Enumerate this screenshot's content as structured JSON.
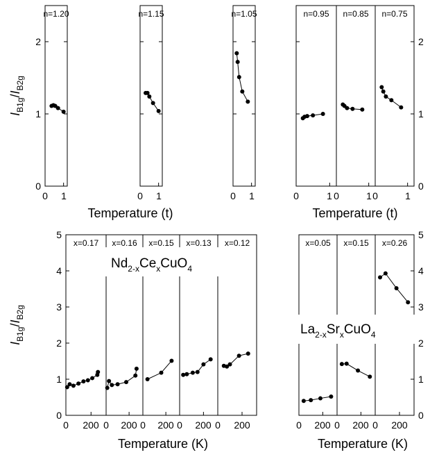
{
  "chart_data": [
    {
      "type": "scatter",
      "group": "theory",
      "xlabel": "Temperature (t)",
      "ylabel": "I_B1g/I_B2g",
      "ylim": [
        0,
        2.5
      ],
      "xlim": [
        0,
        1.2
      ],
      "yticks": [
        0,
        1,
        2
      ],
      "xticks": [
        0,
        1
      ],
      "grid": false,
      "panels": [
        {
          "label": "n=1.20",
          "x": [
            0.35,
            0.45,
            0.55,
            0.7,
            1.0
          ],
          "y": [
            1.11,
            1.12,
            1.11,
            1.08,
            1.03
          ]
        },
        {
          "label": "n=1.15",
          "x": [
            0.3,
            0.4,
            0.5,
            0.7,
            1.0
          ],
          "y": [
            1.29,
            1.29,
            1.24,
            1.15,
            1.04
          ]
        },
        {
          "label": "n=1.05",
          "x": [
            0.2,
            0.25,
            0.33,
            0.5,
            0.8
          ],
          "y": [
            1.84,
            1.72,
            1.51,
            1.31,
            1.17
          ]
        },
        {
          "label": "n=0.95",
          "x": [
            0.2,
            0.25,
            0.33,
            0.5,
            0.8
          ],
          "y": [
            0.94,
            0.96,
            0.97,
            0.98,
            1.0
          ]
        },
        {
          "label": "n=0.85",
          "x": [
            0.2,
            0.25,
            0.33,
            0.5,
            0.8
          ],
          "y": [
            1.13,
            1.11,
            1.08,
            1.07,
            1.06
          ]
        },
        {
          "label": "n=0.75",
          "x": [
            0.2,
            0.25,
            0.33,
            0.5,
            0.8
          ],
          "y": [
            1.37,
            1.31,
            1.24,
            1.19,
            1.09
          ]
        }
      ]
    },
    {
      "type": "scatter",
      "group": "NCCO",
      "annotation": {
        "base": "Nd",
        "s1": "2-x",
        "mid": "Ce",
        "s2": "x",
        "end": "CuO",
        "s3": "4"
      },
      "xlabel": "Temperature (K)",
      "ylabel": "I_B1g/I_B2g",
      "ylim": [
        0,
        5
      ],
      "xlim": [
        0,
        320
      ],
      "yticks": [
        0,
        1,
        2,
        3,
        4,
        5
      ],
      "xticks": [
        0,
        200
      ],
      "grid": false,
      "panels": [
        {
          "label": "x=0.17",
          "x": [
            10,
            30,
            60,
            100,
            140,
            175,
            210,
            250,
            255
          ],
          "y": [
            0.78,
            0.86,
            0.82,
            0.88,
            0.94,
            0.97,
            1.03,
            1.12,
            1.2
          ]
        },
        {
          "label": "x=0.16",
          "x": [
            10,
            25,
            50,
            100,
            175,
            255,
            265
          ],
          "y": [
            0.76,
            0.95,
            0.84,
            0.86,
            0.92,
            1.1,
            1.29
          ]
        },
        {
          "label": "x=0.15",
          "x": [
            40,
            160,
            250
          ],
          "y": [
            1.0,
            1.18,
            1.51
          ]
        },
        {
          "label": "x=0.13",
          "x": [
            30,
            60,
            110,
            150,
            200,
            260
          ],
          "y": [
            1.12,
            1.14,
            1.18,
            1.2,
            1.41,
            1.55
          ]
        },
        {
          "label": "x=0.12",
          "x": [
            50,
            75,
            100,
            175,
            250
          ],
          "y": [
            1.37,
            1.35,
            1.41,
            1.65,
            1.71
          ]
        }
      ]
    },
    {
      "type": "scatter",
      "group": "LSCO",
      "annotation": {
        "base": "La",
        "s1": "2-x",
        "mid": "Sr",
        "s2": "x",
        "end": "CuO",
        "s3": "4"
      },
      "xlabel": "Temperature (K)",
      "ylabel": "I_B1g/I_B2g",
      "ylim": [
        0,
        5
      ],
      "xlim": [
        0,
        320
      ],
      "yticks": [
        0,
        1,
        2,
        3,
        4,
        5
      ],
      "xticks": [
        0,
        200
      ],
      "grid": false,
      "panels": [
        {
          "label": "x=0.05",
          "x": [
            40,
            100,
            180,
            270
          ],
          "y": [
            0.4,
            0.42,
            0.47,
            0.52
          ]
        },
        {
          "label": "x=0.15",
          "x": [
            40,
            80,
            175,
            275
          ],
          "y": [
            1.42,
            1.43,
            1.24,
            1.07
          ]
        },
        {
          "label": "x=0.26",
          "x": [
            40,
            85,
            175,
            270
          ],
          "y": [
            3.82,
            3.93,
            3.52,
            3.13
          ]
        }
      ]
    }
  ]
}
